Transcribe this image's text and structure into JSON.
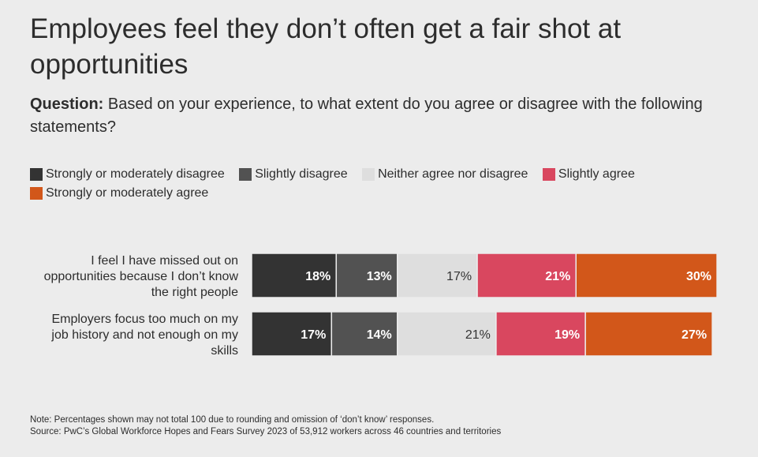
{
  "title": "Employees feel they don’t often get a fair shot at opportunities",
  "question": {
    "label": "Question:",
    "text": "Based on your experience, to what extent do you agree or disagree with the following statements?"
  },
  "colors": {
    "strongly_disagree": "#333333",
    "slightly_disagree": "#525252",
    "neither": "#dedede",
    "slightly_agree": "#d9475f",
    "strongly_agree": "#d2571a"
  },
  "chart_data": {
    "type": "bar",
    "orientation": "horizontal-stacked",
    "categories": [
      "I feel I have missed out on opportunities because I don’t know the right people",
      "Employers focus too much on my job history and not enough on my skills"
    ],
    "series": [
      {
        "name": "Strongly or moderately disagree",
        "values": [
          18,
          17
        ],
        "labels": [
          "18%",
          "17%"
        ]
      },
      {
        "name": "Slightly disagree",
        "values": [
          13,
          14
        ],
        "labels": [
          "13%",
          "14%"
        ]
      },
      {
        "name": "Neither agree nor disagree",
        "values": [
          17,
          21
        ],
        "labels": [
          "17%",
          "21%"
        ]
      },
      {
        "name": "Slightly agree",
        "values": [
          21,
          19
        ],
        "labels": [
          "21%",
          "19%"
        ]
      },
      {
        "name": "Strongly or moderately agree",
        "values": [
          30,
          27
        ],
        "labels": [
          "30%",
          "27%"
        ]
      }
    ],
    "xlim": [
      0,
      100
    ],
    "legend": "top"
  },
  "notes": {
    "note": "Note: Percentages shown may not total 100 due to rounding and omission of ‘don’t know’ responses.",
    "source": "Source: PwC’s Global Workforce Hopes and Fears Survey 2023 of 53,912 workers across 46 countries and territories"
  }
}
